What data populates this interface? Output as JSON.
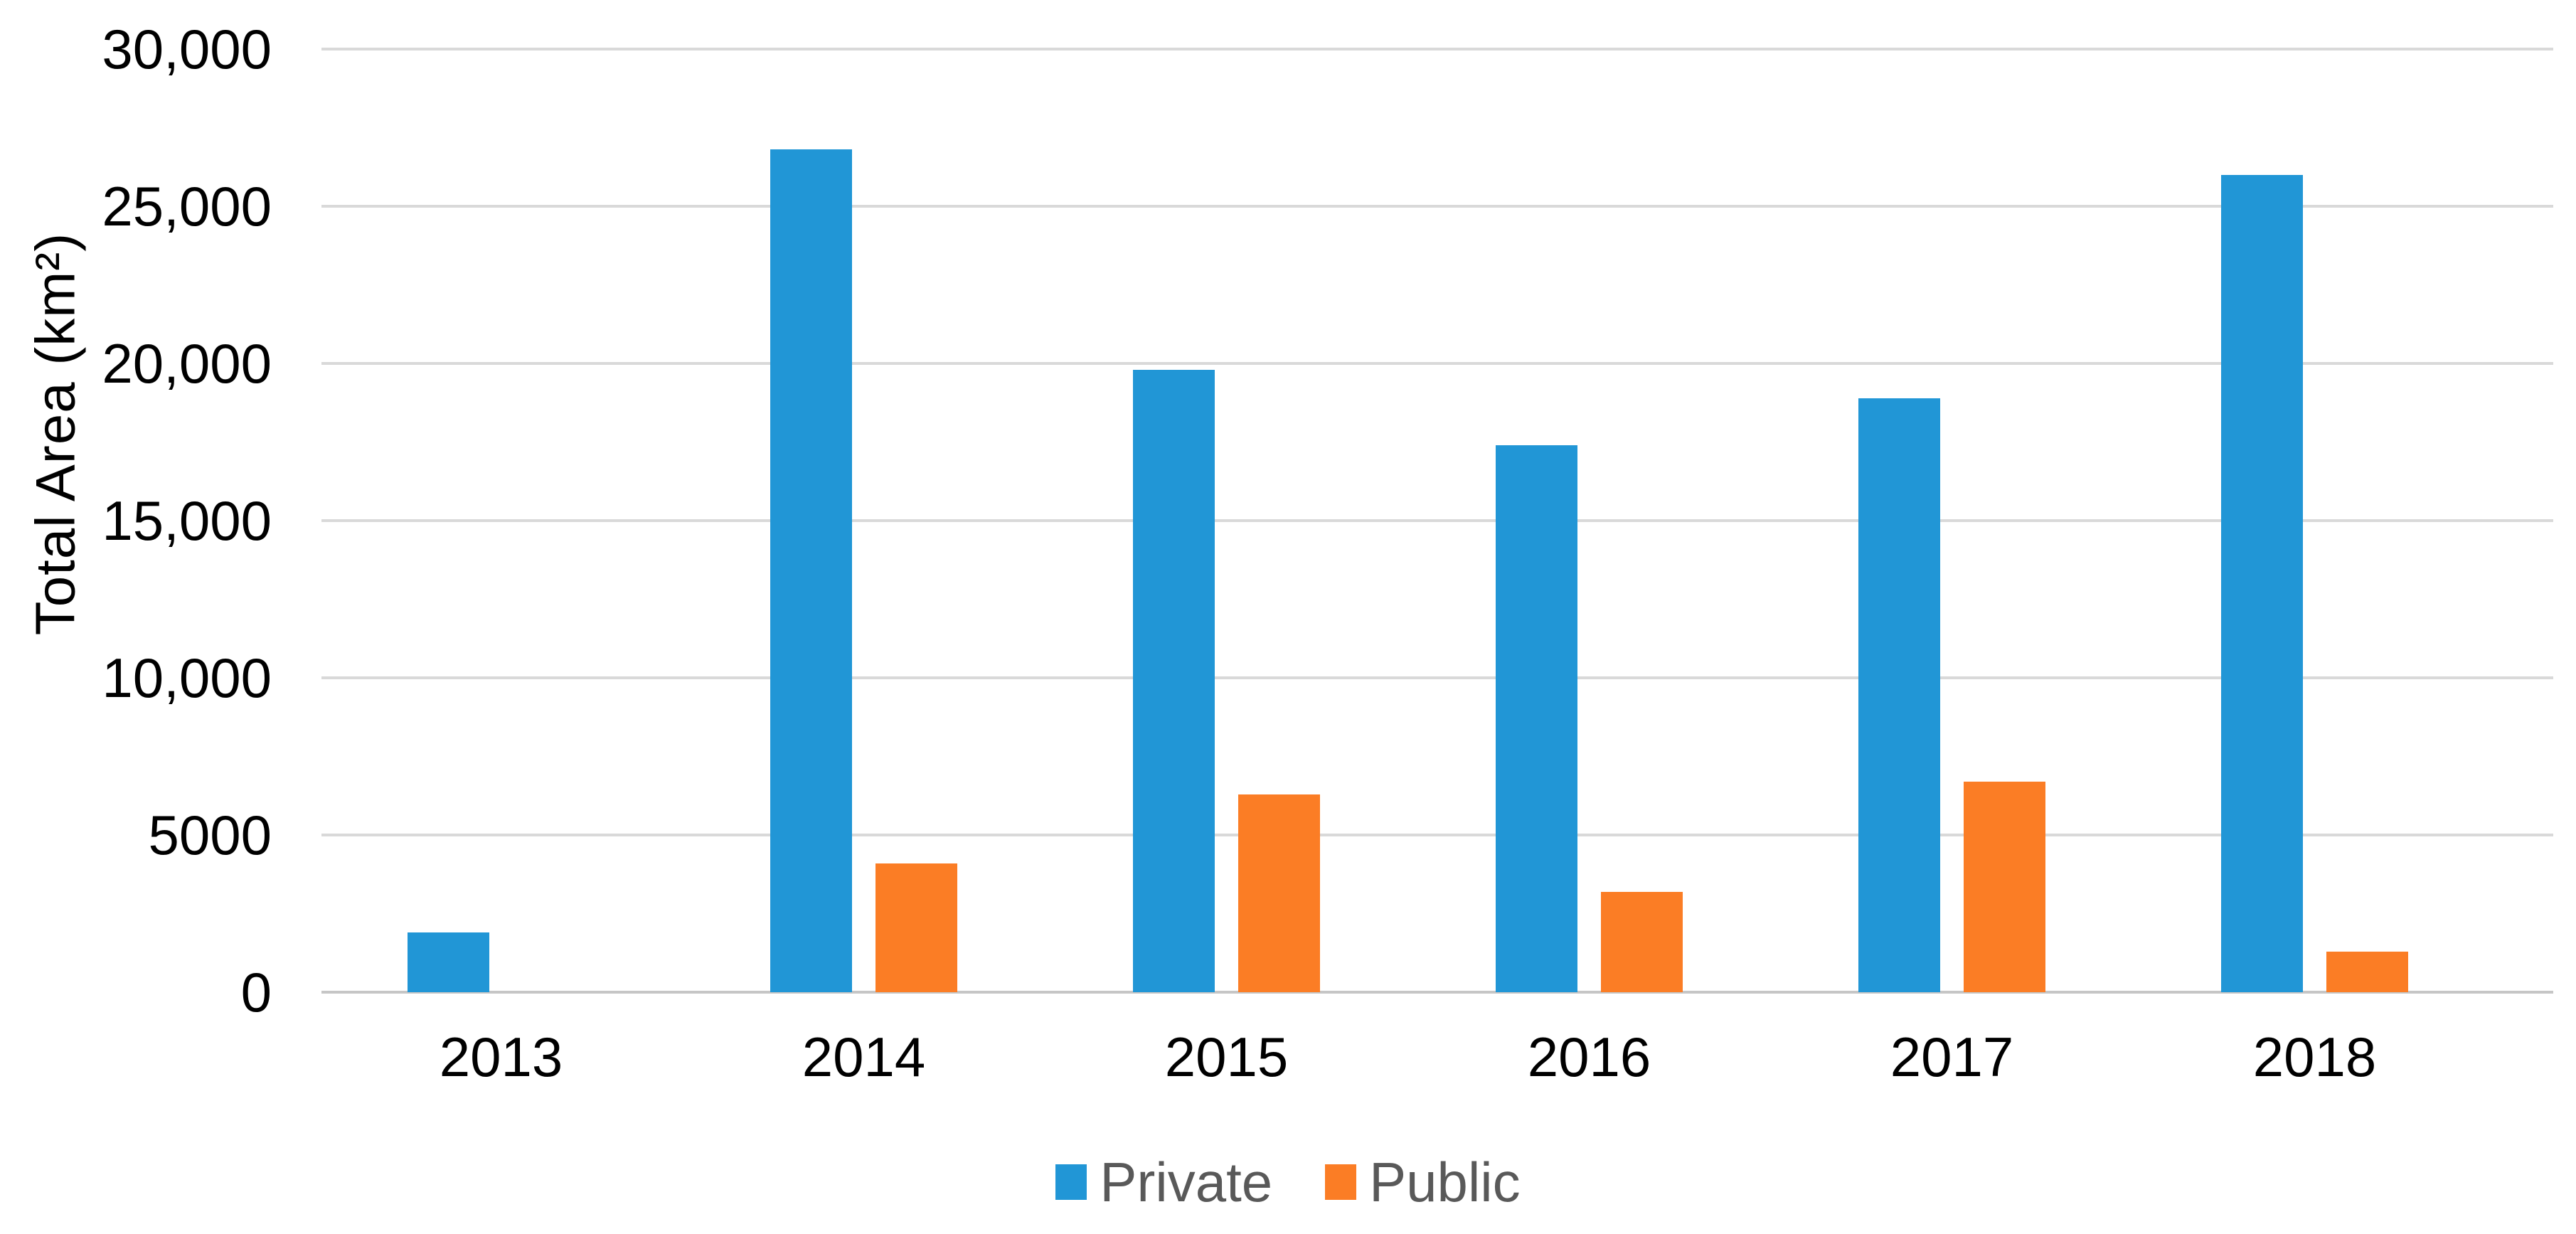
{
  "figure": {
    "background": "#ffffff"
  },
  "y_axis": {
    "title": "Total Area (km²)",
    "tick_labels": [
      "30,000",
      "25,000",
      "20,000",
      "15,000",
      "10,000",
      "5000",
      "0"
    ]
  },
  "x_axis": {
    "tick_labels": [
      "2013",
      "2014",
      "2015",
      "2016",
      "2017",
      "2018"
    ]
  },
  "legend": {
    "items": [
      {
        "label": "Private",
        "color": "#2196d6"
      },
      {
        "label": "Public",
        "color": "#fb7d25"
      }
    ]
  },
  "colors": {
    "private_bar": "#2196d6",
    "public_bar": "#fb7d25",
    "gridline": "#d9d9d9",
    "baseline": "#c6c6c6",
    "tick_text": "#000000",
    "legend_text": "#595959"
  },
  "chart_data": {
    "type": "bar",
    "title": "",
    "categories": [
      "2013",
      "2014",
      "2015",
      "2016",
      "2017",
      "2018"
    ],
    "series": [
      {
        "name": "Private",
        "color": "#2196d6",
        "values": [
          1900,
          26800,
          19800,
          17400,
          18900,
          26000
        ]
      },
      {
        "name": "Public",
        "color": "#fb7d25",
        "values": [
          0,
          4100,
          6300,
          3200,
          6700,
          1300
        ]
      }
    ],
    "xlabel": "",
    "ylabel": "Total Area (km²)",
    "ylim": [
      0,
      30000
    ],
    "ytick_step": 5000,
    "grid": "horizontal",
    "legend_position": "bottom-center"
  }
}
